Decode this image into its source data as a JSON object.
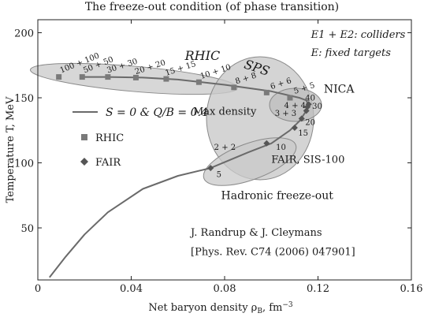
{
  "chart_data": {
    "type": "scatter",
    "title": "The freeze-out condition (of phase transition)",
    "xlabel": "Net baryon density ρ",
    "xlabel_sub": "B",
    "xlabel_unit": ", fm",
    "xlabel_unit_sup": "−3",
    "ylabel": "Temperature T, MeV",
    "xlim": [
      0,
      0.16
    ],
    "ylim": [
      10,
      210
    ],
    "xticks": [
      "0",
      "0.04",
      "0.08",
      "0.12",
      "0.16"
    ],
    "yticks": [
      "50",
      "100",
      "150",
      "200"
    ],
    "legend": {
      "placement": "left",
      "line_label": "S = 0 & Q/B = 0.4",
      "rhic_label": "RHIC",
      "fair_label": "FAIR"
    },
    "series": [
      {
        "name": "S = 0 & Q/B = 0.4",
        "kind": "line",
        "x": [
          0.005,
          0.012,
          0.02,
          0.03,
          0.045,
          0.06,
          0.074,
          0.09,
          0.1,
          0.108,
          0.112,
          0.115,
          0.116,
          0.115,
          0.112,
          0.1,
          0.08,
          0.06,
          0.045,
          0.03,
          0.02
        ],
        "y": [
          12,
          28,
          45,
          62,
          80,
          90,
          96,
          108,
          115,
          125,
          132,
          140,
          144,
          148,
          150,
          155,
          160,
          164,
          165.5,
          166,
          166
        ]
      },
      {
        "name": "RHIC",
        "kind": "markers",
        "marker": "square",
        "x": [
          0.009,
          0.019,
          0.03,
          0.042,
          0.055,
          0.069,
          0.084,
          0.098,
          0.108
        ],
        "y": [
          166,
          166,
          166,
          165.5,
          164.5,
          162,
          158,
          154,
          150
        ]
      },
      {
        "name": "FAIR",
        "kind": "markers",
        "marker": "diamond",
        "x": [
          0.074,
          0.098,
          0.11,
          0.113,
          0.115,
          0.1155,
          0.116
        ],
        "y": [
          96,
          115,
          127,
          134,
          140,
          143,
          145
        ]
      }
    ],
    "point_labels": [
      {
        "text": "100 + 100",
        "x": 0.01,
        "y": 169,
        "rotate": -22
      },
      {
        "text": "50 + 50",
        "x": 0.02,
        "y": 169,
        "rotate": -22
      },
      {
        "text": "30 + 30",
        "x": 0.03,
        "y": 169,
        "rotate": -18
      },
      {
        "text": "20 + 20",
        "x": 0.042,
        "y": 168,
        "rotate": -18
      },
      {
        "text": "15 + 15",
        "x": 0.055,
        "y": 167,
        "rotate": -18
      },
      {
        "text": "10 + 10",
        "x": 0.07,
        "y": 164.5,
        "rotate": -18
      },
      {
        "text": "8 + 8",
        "x": 0.085,
        "y": 160.5,
        "rotate": -18
      },
      {
        "text": "6 + 6",
        "x": 0.1,
        "y": 156.5,
        "rotate": -18
      },
      {
        "text": "5 + 5",
        "x": 0.11,
        "y": 153,
        "rotate": -18
      },
      {
        "text": "40",
        "x": 0.1145,
        "y": 148,
        "rotate": 0
      },
      {
        "text": "30",
        "x": 0.1175,
        "y": 141.5,
        "rotate": 0
      },
      {
        "text": "4 + 4",
        "x": 0.1055,
        "y": 142,
        "rotate": 0
      },
      {
        "text": "3 + 3",
        "x": 0.1015,
        "y": 136,
        "rotate": 0
      },
      {
        "text": "20",
        "x": 0.1145,
        "y": 129,
        "rotate": 0
      },
      {
        "text": "15",
        "x": 0.1115,
        "y": 121,
        "rotate": 0
      },
      {
        "text": "10",
        "x": 0.102,
        "y": 110,
        "rotate": 0
      },
      {
        "text": "2 + 2",
        "x": 0.0755,
        "y": 110,
        "rotate": 0
      },
      {
        "text": "5",
        "x": 0.0765,
        "y": 89,
        "rotate": 0
      }
    ],
    "annotations": [
      {
        "text": "RHIC",
        "x": 0.063,
        "y": 179,
        "size": 16,
        "italic": true,
        "rotate": 0
      },
      {
        "text": "SPS",
        "x": 0.088,
        "y": 173,
        "size": 16,
        "italic": true,
        "rotate": 18
      },
      {
        "text": "E1 + E2: colliders",
        "x": 0.117,
        "y": 196,
        "size": 13,
        "italic": true,
        "rotate": 0
      },
      {
        "text": "E: fixed targets",
        "x": 0.117,
        "y": 182,
        "size": 13,
        "italic": true,
        "rotate": 0
      },
      {
        "text": "NICA",
        "x": 0.1225,
        "y": 154,
        "size": 14,
        "italic": false,
        "rotate": 0
      },
      {
        "text": "Max density",
        "x": 0.0665,
        "y": 137,
        "size": 13,
        "italic": false,
        "rotate": 0
      },
      {
        "text": "FAIR, SIS-100",
        "x": 0.1,
        "y": 100,
        "size": 13,
        "italic": false,
        "rotate": 0
      },
      {
        "text": "Hadronic freeze-out",
        "x": 0.0785,
        "y": 72,
        "size": 14,
        "italic": false,
        "rotate": 0
      },
      {
        "text": "J. Randrup & J. Cleymans",
        "x": 0.0655,
        "y": 44,
        "size": 13,
        "italic": false,
        "rotate": 0
      },
      {
        "text": "[Phys. Rev. C74 (2006) 047901]",
        "x": 0.0655,
        "y": 29,
        "size": 13,
        "italic": false,
        "rotate": 0
      }
    ],
    "colors": {
      "line": "#6a6a6a",
      "marker": "#7a7a7a",
      "fair_marker": "#555555",
      "ellipse_fill": "#c9c9c9",
      "ellipse_stroke": "#8a8a8a"
    }
  }
}
